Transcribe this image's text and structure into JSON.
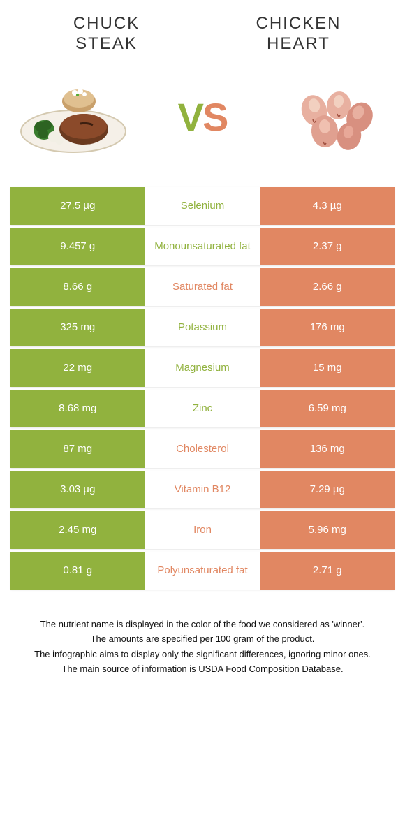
{
  "colors": {
    "left": "#91b23e",
    "right": "#e18762",
    "text": "#333333"
  },
  "foods": {
    "left_title": "CHUCK\nSTEAK",
    "right_title": "CHICKEN\nHEART"
  },
  "vs": {
    "v": "V",
    "s": "S"
  },
  "rows": [
    {
      "left": "27.5 µg",
      "label": "Selenium",
      "right": "4.3 µg",
      "winner": "left"
    },
    {
      "left": "9.457 g",
      "label": "Monounsaturated fat",
      "right": "2.37 g",
      "winner": "left"
    },
    {
      "left": "8.66 g",
      "label": "Saturated fat",
      "right": "2.66 g",
      "winner": "right"
    },
    {
      "left": "325 mg",
      "label": "Potassium",
      "right": "176 mg",
      "winner": "left"
    },
    {
      "left": "22 mg",
      "label": "Magnesium",
      "right": "15 mg",
      "winner": "left"
    },
    {
      "left": "8.68 mg",
      "label": "Zinc",
      "right": "6.59 mg",
      "winner": "left"
    },
    {
      "left": "87 mg",
      "label": "Cholesterol",
      "right": "136 mg",
      "winner": "right"
    },
    {
      "left": "3.03 µg",
      "label": "Vitamin B12",
      "right": "7.29 µg",
      "winner": "right"
    },
    {
      "left": "2.45 mg",
      "label": "Iron",
      "right": "5.96 mg",
      "winner": "right"
    },
    {
      "left": "0.81 g",
      "label": "Polyunsaturated fat",
      "right": "2.71 g",
      "winner": "right"
    }
  ],
  "footnotes": [
    "The nutrient name is displayed in the color of the food we considered as 'winner'.",
    "The amounts are specified per 100 gram of the product.",
    "The infographic aims to display only the significant differences, ignoring minor ones.",
    "The main source of information is USDA Food Composition Database."
  ]
}
